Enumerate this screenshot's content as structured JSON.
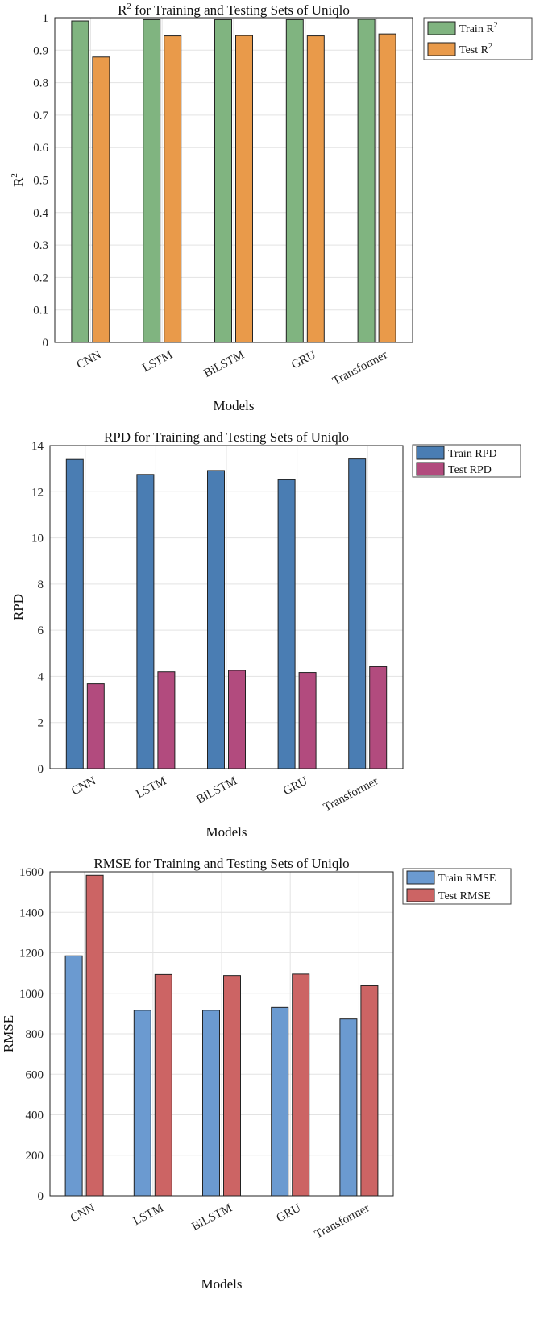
{
  "chart_data": [
    {
      "type": "bar",
      "title_main": "for Training and Testing Sets of Uniqlo",
      "title_base": "R",
      "title_sup": "2",
      "xlabel": "Models",
      "ylabel_base": "R",
      "ylabel_sup": "2",
      "categories": [
        "CNN",
        "LSTM",
        "BiLSTM",
        "GRU",
        "Transformer"
      ],
      "ylim": [
        0,
        1
      ],
      "yticks": [
        "0",
        "0.1",
        "0.2",
        "0.3",
        "0.4",
        "0.5",
        "0.6",
        "0.7",
        "0.8",
        "0.9",
        "1"
      ],
      "grid": true,
      "legend_position": "outside-top-right",
      "series": [
        {
          "name": "Train R",
          "sup": "2",
          "color": "#80b480",
          "values": [
            0.99,
            0.994,
            0.994,
            0.994,
            0.995
          ]
        },
        {
          "name": "Test R",
          "sup": "2",
          "color": "#e99a4a",
          "values": [
            0.879,
            0.944,
            0.945,
            0.944,
            0.95
          ]
        }
      ]
    },
    {
      "type": "bar",
      "title_main": "RPD for Training and Testing Sets of Uniqlo",
      "xlabel": "Models",
      "ylabel_base": "RPD",
      "categories": [
        "CNN",
        "LSTM",
        "BiLSTM",
        "GRU",
        "Transformer"
      ],
      "ylim": [
        0,
        14
      ],
      "yticks": [
        "0",
        "2",
        "4",
        "6",
        "8",
        "10",
        "12",
        "14"
      ],
      "grid": true,
      "legend_position": "outside-top-right",
      "series": [
        {
          "name": "Train RPD",
          "color": "#4a7db3",
          "values": [
            13.4,
            12.75,
            12.92,
            12.52,
            13.42
          ]
        },
        {
          "name": "Test RPD",
          "color": "#b24b7e",
          "values": [
            3.68,
            4.2,
            4.26,
            4.17,
            4.42
          ]
        }
      ]
    },
    {
      "type": "bar",
      "title_main": "RMSE for Training and Testing Sets of Uniqlo",
      "xlabel": "Models",
      "ylabel_base": "RMSE",
      "categories": [
        "CNN",
        "LSTM",
        "BiLSTM",
        "GRU",
        "Transformer"
      ],
      "ylim": [
        0,
        1600
      ],
      "yticks": [
        "0",
        "200",
        "400",
        "600",
        "800",
        "1000",
        "1200",
        "1400",
        "1600"
      ],
      "grid": true,
      "legend_position": "outside-top-right",
      "series": [
        {
          "name": "Train RMSE",
          "color": "#6b9ad0",
          "values": [
            1185,
            916,
            916,
            930,
            873
          ]
        },
        {
          "name": "Test RMSE",
          "color": "#cc6464",
          "values": [
            1583,
            1093,
            1088,
            1095,
            1037
          ]
        }
      ]
    }
  ]
}
